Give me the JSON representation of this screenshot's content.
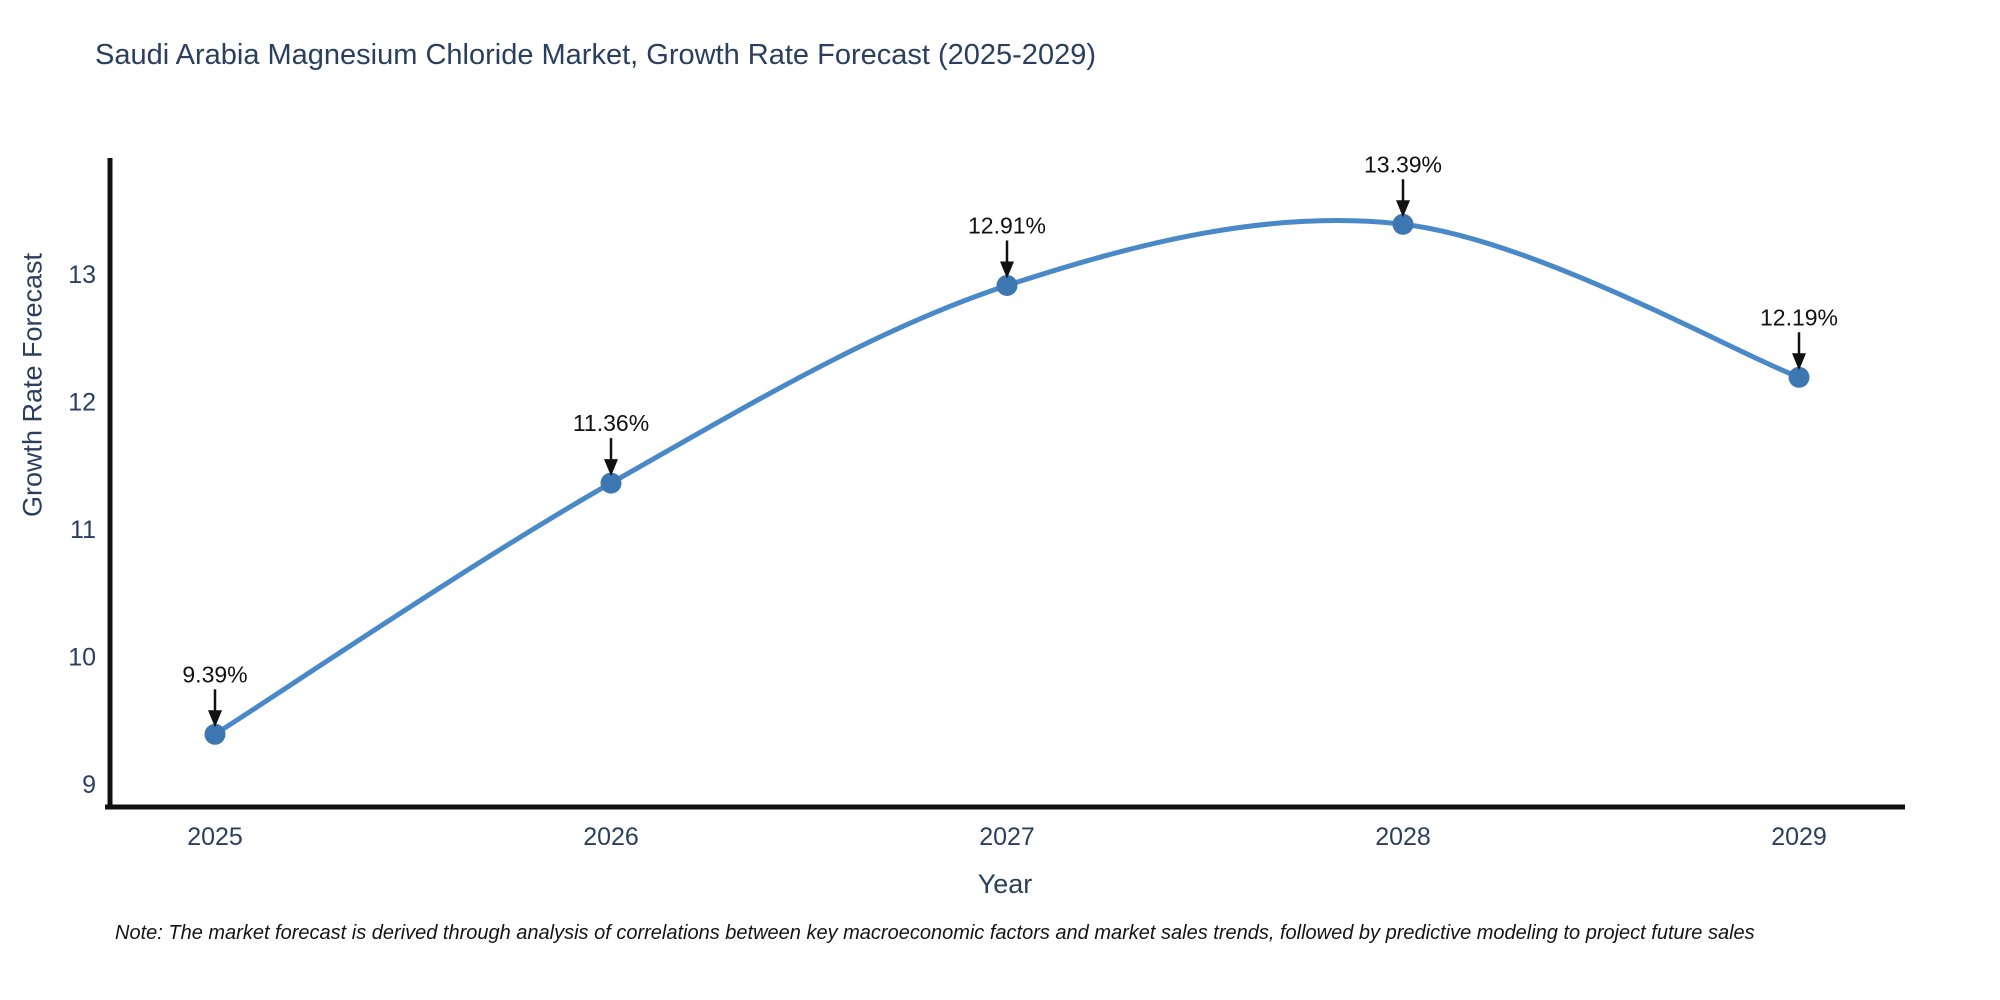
{
  "title": "Saudi Arabia Magnesium Chloride Market, Growth Rate Forecast (2025-2029)",
  "note": "Note: The market forecast is derived through analysis of correlations between key macroeconomic factors and market sales trends, followed by predictive modeling to project future sales",
  "chart_data": {
    "type": "line",
    "title": "Saudi Arabia Magnesium Chloride Market, Growth Rate Forecast (2025-2029)",
    "xlabel": "Year",
    "ylabel": "Growth Rate Forecast",
    "categories": [
      "2025",
      "2026",
      "2027",
      "2028",
      "2029"
    ],
    "series": [
      {
        "name": "Growth Rate Forecast",
        "values": [
          9.39,
          11.36,
          12.91,
          13.39,
          12.19
        ]
      }
    ],
    "point_labels": [
      "9.39%",
      "11.36%",
      "12.91%",
      "13.39%",
      "12.19%"
    ],
    "yticks": [
      9,
      10,
      11,
      12,
      13
    ],
    "ylim": [
      8.82,
      13.95
    ],
    "line_shape": "spline",
    "grid": false,
    "legend": "none",
    "colors": {
      "line": "#4a89c8",
      "marker": "#3c77b2",
      "axis": "#111111",
      "tick_label": "#2a3f5f",
      "title": "#2a3f5f",
      "annotation": "#111111",
      "background": "#ffffff"
    }
  }
}
